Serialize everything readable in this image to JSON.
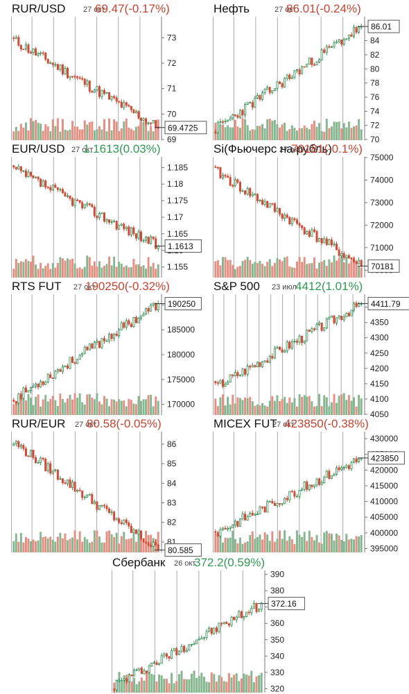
{
  "colors": {
    "up": "#2e8b4f",
    "down": "#d04a35",
    "volUp": "#86b68f",
    "volDown": "#e48f82",
    "grid": "#a9a9a9",
    "axis": "#777777",
    "boxBorder": "#555555"
  },
  "chart_data": [
    {
      "type": "candlestick",
      "name": "RUR/USD",
      "date": "27 окт",
      "quote": "69.47(-0.17%)",
      "direction": "down",
      "ylim": [
        69,
        73.8
      ],
      "ticks": [
        "73",
        "72",
        "71",
        "70",
        "69"
      ],
      "last_label": "69.4725",
      "last": 69.47,
      "start": 72.9,
      "end": 69.47,
      "n": 60,
      "seed": 11
    },
    {
      "type": "candlestick",
      "name": "Нефть",
      "date": "27 окт",
      "quote": "86.01(-0.24%)",
      "direction": "down",
      "ylim": [
        70,
        87.3
      ],
      "ticks": [
        "84",
        "82",
        "80",
        "78",
        "76",
        "74",
        "72",
        "70"
      ],
      "last_label": "86.01",
      "last": 86.01,
      "start": 71.5,
      "end": 86.0,
      "n": 60,
      "seed": 23
    },
    {
      "type": "candlestick",
      "name": "EUR/USD",
      "date": "27 окт",
      "quote": "1.1613(0.03%)",
      "direction": "up",
      "ylim": [
        1.152,
        1.188
      ],
      "ticks": [
        "1.185",
        "1.18",
        "1.175",
        "1.17",
        "1.165",
        "1.16",
        "1.155"
      ],
      "last_label": "1.1613",
      "last": 1.1613,
      "start": 1.1845,
      "end": 1.1613,
      "n": 60,
      "seed": 37
    },
    {
      "type": "candlestick",
      "name": "Si(Фьючерс на рубль)",
      "date": "27 окт",
      "quote": "70181(-0.1%)",
      "direction": "down",
      "ylim": [
        69700,
        75000
      ],
      "ticks": [
        "75000",
        "74000",
        "73000",
        "72000",
        "71000",
        "70000"
      ],
      "last_label": "70181",
      "last": 70181,
      "start": 74400,
      "end": 70181,
      "n": 60,
      "seed": 41
    },
    {
      "type": "candlestick",
      "name": "RTS FUT",
      "date": "27 окт",
      "quote": "190250(-0.32%)",
      "direction": "down",
      "ylim": [
        168000,
        192000
      ],
      "ticks": [
        "190000",
        "185000",
        "180000",
        "175000",
        "170000"
      ],
      "last_label": "190250",
      "last": 190250,
      "start": 171000,
      "end": 190250,
      "n": 60,
      "seed": 53
    },
    {
      "type": "candlestick",
      "name": "S&P 500",
      "date": "23 июл",
      "quote": "4412(1.01%)",
      "direction": "up",
      "ylim": [
        4050,
        4440
      ],
      "ticks": [
        "4400",
        "4350",
        "4300",
        "4250",
        "4200",
        "4150",
        "4100",
        "4050"
      ],
      "last_label": "4411.79",
      "last": 4411.79,
      "start": 4140,
      "end": 4411.79,
      "n": 60,
      "seed": 67
    },
    {
      "type": "candlestick",
      "name": "RUR/EUR",
      "date": "27 окт",
      "quote": "80.58(-0.05%)",
      "direction": "down",
      "ylim": [
        80.5,
        86.6
      ],
      "ticks": [
        "86",
        "85",
        "84",
        "83",
        "82",
        "81"
      ],
      "last_label": "80.585",
      "last": 80.585,
      "start": 86.1,
      "end": 80.585,
      "n": 60,
      "seed": 79
    },
    {
      "type": "candlestick",
      "name": "MICEX FUT",
      "date": "27 окт",
      "quote": "423850(-0.38%)",
      "direction": "down",
      "ylim": [
        394000,
        432000
      ],
      "ticks": [
        "430000",
        "425000",
        "420000",
        "415000",
        "410000",
        "405000",
        "400000",
        "395000"
      ],
      "last_label": "423850",
      "last": 423850,
      "start": 400000,
      "end": 423850,
      "n": 60,
      "seed": 83
    },
    {
      "type": "candlestick",
      "name": "Сбербанк",
      "date": "26 окт",
      "quote": "372.2(0.59%)",
      "direction": "up",
      "ylim": [
        318,
        392
      ],
      "ticks": [
        "390",
        "380",
        "370",
        "360",
        "350",
        "340",
        "330",
        "320"
      ],
      "last_label": "372.16",
      "last": 372.16,
      "start": 322,
      "end": 372.16,
      "n": 60,
      "seed": 97
    }
  ]
}
